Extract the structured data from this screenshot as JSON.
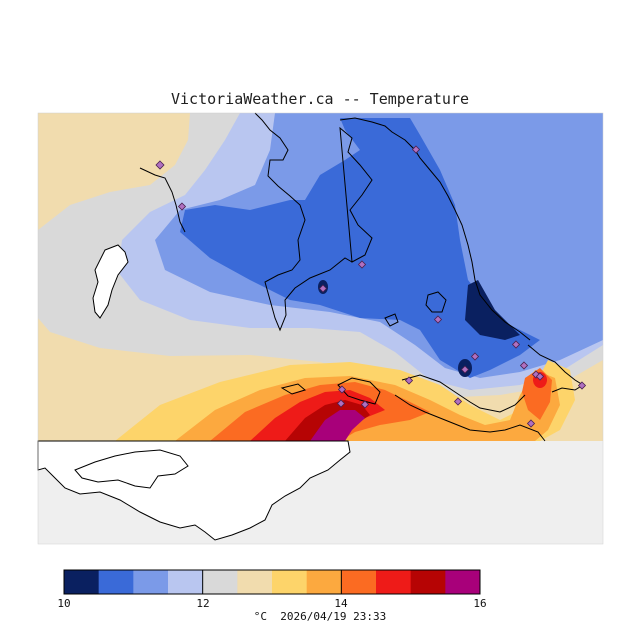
{
  "title": "VictoriaWeather.ca -- Temperature",
  "colorbar": {
    "colors": [
      "#0a2060",
      "#3a6ad8",
      "#7b9ae8",
      "#b9c6f0",
      "#d9d9d9",
      "#f1dcae",
      "#fdd46a",
      "#fca93f",
      "#fb6b22",
      "#ee1b18",
      "#b60404",
      "#a8007a"
    ],
    "min": 10,
    "max": 16,
    "ticks": [
      "10",
      "12",
      "14",
      "16"
    ]
  },
  "caption": {
    "unit": "°C",
    "timestamp": "2026/04/19 23:33"
  },
  "map_colors": {
    "background": "#efefef",
    "land_white": "#ffffff",
    "coastline": "#000000",
    "station": "#b070c0"
  }
}
